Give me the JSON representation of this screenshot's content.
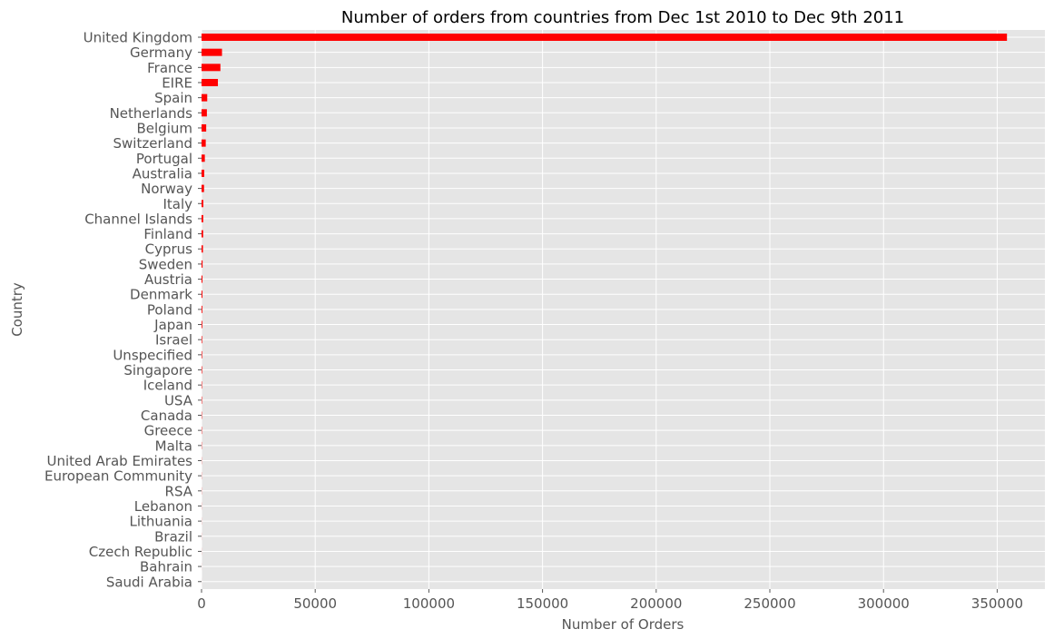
{
  "chart_data": {
    "type": "bar",
    "orientation": "horizontal",
    "title": "Number of orders from countries from Dec 1st 2010 to Dec 9th 2011",
    "xlabel": "Number of Orders",
    "ylabel": "Country",
    "xlim": [
      0,
      371000
    ],
    "x_ticks": [
      0,
      50000,
      100000,
      150000,
      200000,
      250000,
      300000,
      350000
    ],
    "grid": true,
    "bar_color": "#ff0000",
    "background_color": "#e5e5e5",
    "grid_color": "#ffffff",
    "categories": [
      "United Kingdom",
      "Germany",
      "France",
      "EIRE",
      "Spain",
      "Netherlands",
      "Belgium",
      "Switzerland",
      "Portugal",
      "Australia",
      "Norway",
      "Italy",
      "Channel Islands",
      "Finland",
      "Cyprus",
      "Sweden",
      "Austria",
      "Denmark",
      "Poland",
      "Japan",
      "Israel",
      "Unspecified",
      "Singapore",
      "Iceland",
      "USA",
      "Canada",
      "Greece",
      "Malta",
      "United Arab Emirates",
      "European Community",
      "RSA",
      "Lebanon",
      "Lithuania",
      "Brazil",
      "Czech Republic",
      "Bahrain",
      "Saudi Arabia"
    ],
    "values": [
      354300,
      9000,
      8300,
      7200,
      2500,
      2350,
      2050,
      1850,
      1450,
      1200,
      1100,
      800,
      750,
      700,
      620,
      450,
      400,
      380,
      340,
      320,
      250,
      240,
      230,
      180,
      180,
      150,
      145,
      110,
      68,
      60,
      58,
      45,
      35,
      32,
      30,
      17,
      9
    ]
  }
}
